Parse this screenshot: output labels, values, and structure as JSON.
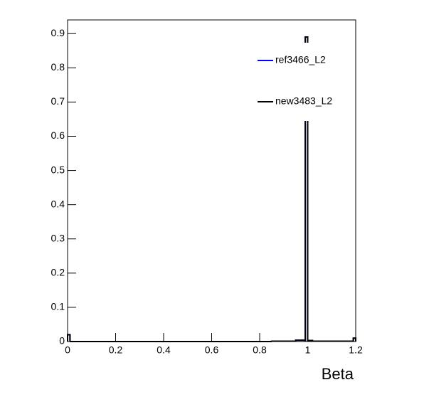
{
  "chart_data": {
    "type": "histogram",
    "xlabel": "Beta",
    "bins": [
      0,
      0.01,
      0.85,
      0.95,
      0.99,
      1.0,
      1.02,
      1.19,
      1.2
    ],
    "series": [
      {
        "name": "ref3466_L2",
        "color": "#0000ff",
        "values": [
          0.02,
          0,
          0.001,
          0.004,
          0.89,
          0.003,
          0.001,
          0.01
        ]
      },
      {
        "name": "new3483_L2",
        "color": "#000000",
        "values": [
          0.02,
          0,
          0.001,
          0.004,
          0.89,
          0.003,
          0.001,
          0.01
        ]
      }
    ],
    "xlim": [
      0,
      1.2
    ],
    "xticks": [
      0,
      0.2,
      0.4,
      0.6,
      0.8,
      1,
      1.2
    ],
    "ylim": [
      0,
      0.94
    ],
    "yticks": [
      0,
      0.1,
      0.2,
      0.3,
      0.4,
      0.5,
      0.6,
      0.7,
      0.8,
      0.9
    ],
    "legend": "top-right"
  }
}
